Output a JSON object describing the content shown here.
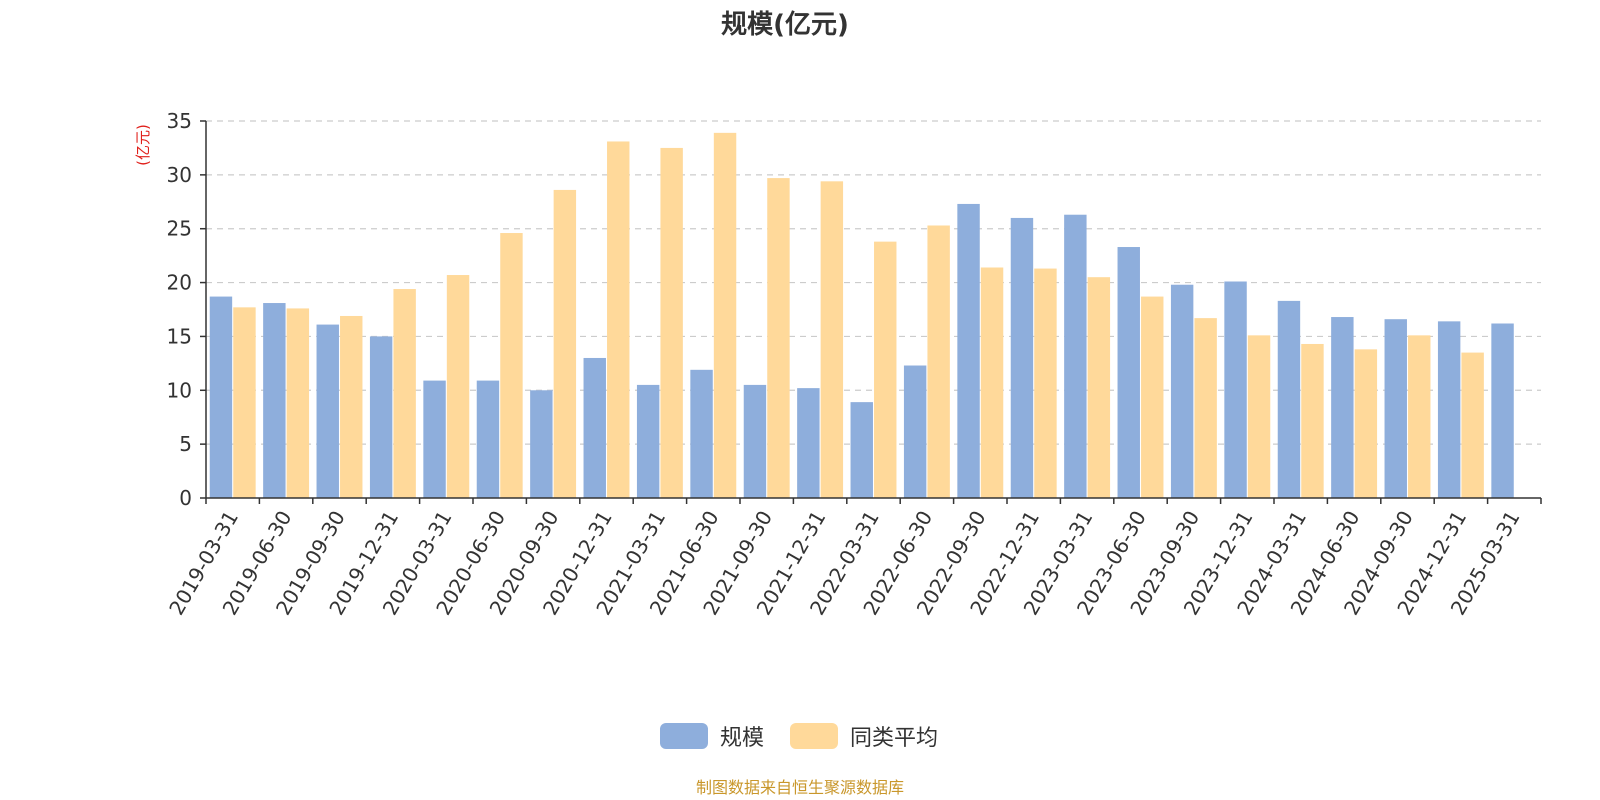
{
  "chart_data": {
    "type": "bar",
    "title": "规模(亿元)",
    "ylabel": "(亿元)",
    "ylim": [
      0,
      35
    ],
    "yticks": [
      0,
      5,
      10,
      15,
      20,
      25,
      30,
      35
    ],
    "grid": true,
    "legend_position": "bottom-center",
    "categories": [
      "2019-03-31",
      "2019-06-30",
      "2019-09-30",
      "2019-12-31",
      "2020-03-31",
      "2020-06-30",
      "2020-09-30",
      "2020-12-31",
      "2021-03-31",
      "2021-06-30",
      "2021-09-30",
      "2021-12-31",
      "2022-03-31",
      "2022-06-30",
      "2022-09-30",
      "2022-12-31",
      "2023-03-31",
      "2023-06-30",
      "2023-09-30",
      "2023-12-31",
      "2024-03-31",
      "2024-06-30",
      "2024-09-30",
      "2024-12-31",
      "2025-03-31"
    ],
    "series": [
      {
        "name": "规模",
        "color": "#8EAEDC",
        "values": [
          18.7,
          18.1,
          16.1,
          15.0,
          10.9,
          10.9,
          10.0,
          13.0,
          10.5,
          11.9,
          10.5,
          10.2,
          8.9,
          12.3,
          27.3,
          26.0,
          26.3,
          23.3,
          19.8,
          20.1,
          18.3,
          16.8,
          16.6,
          16.4,
          16.2
        ]
      },
      {
        "name": "同类平均",
        "color": "#FFD99A",
        "values": [
          17.7,
          17.6,
          16.9,
          19.4,
          20.7,
          24.6,
          28.6,
          33.1,
          32.5,
          33.9,
          29.7,
          29.4,
          23.8,
          25.3,
          21.4,
          21.3,
          20.5,
          18.7,
          16.7,
          15.1,
          14.3,
          13.8,
          15.1,
          13.5,
          null
        ]
      }
    ]
  },
  "footer": {
    "source": "制图数据来自恒生聚源数据库"
  },
  "colors": {
    "title": "#333333",
    "axis": "#333333",
    "grid": "#CCCCCC",
    "ylabel": "#E0201B",
    "source": "#C9972B"
  }
}
